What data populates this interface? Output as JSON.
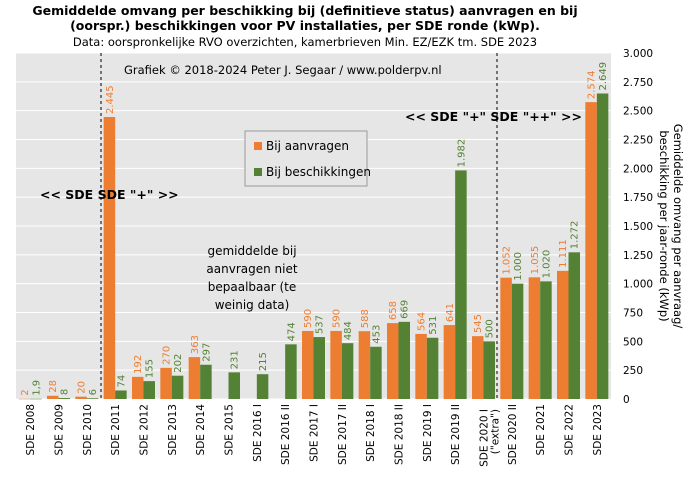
{
  "chart_data": {
    "type": "bar",
    "title_lines": [
      "Gemiddelde omvang per beschikking bij (definitieve status) aanvragen en bij",
      "(oorspr.) beschikkingen voor PV installaties, per SDE ronde (kWp)."
    ],
    "subtitle": "Data: oorspronkelijke RVO overzichten, kamerbrieven Min. EZ/EZK tm. SDE 2023",
    "credit": "Grafiek © 2018-2024 Peter J. Segaar / www.polderpv.nl",
    "ylabel_lines": [
      "Gemiddelde omvang per aanvraag/",
      "beschikking per jaar-ronde (kWp)"
    ],
    "ylim": [
      0,
      3000
    ],
    "yticks": [
      0,
      250,
      500,
      750,
      1000,
      1250,
      1500,
      1750,
      2000,
      2250,
      2500,
      2750,
      3000
    ],
    "ytick_labels": [
      "0",
      "250",
      "500",
      "750",
      "1.000",
      "1.250",
      "1.500",
      "1.750",
      "2.000",
      "2.250",
      "2.500",
      "2.750",
      "3.000"
    ],
    "grid": true,
    "legend_position": "center",
    "categories": [
      "SDE 2008",
      "SDE 2009",
      "SDE 2010",
      "SDE 2011",
      "SDE 2012",
      "SDE 2013",
      "SDE 2014",
      "SDE 2015",
      "SDE 2016 I",
      "SDE 2016 II",
      "SDE 2017 I",
      "SDE 2017 II",
      "SDE 2018 I",
      "SDE 2018 II",
      "SDE 2019 I",
      "SDE 2019 II",
      "SDE 2020 I (\"extra\")",
      "SDE 2020 II",
      "SDE 2021",
      "SDE 2022",
      "SDE 2023"
    ],
    "series": [
      {
        "name": "Bij aanvragen",
        "color": "#ED7D31",
        "values": [
          2,
          28,
          20,
          2445,
          192,
          270,
          363,
          null,
          null,
          null,
          590,
          590,
          588,
          658,
          564,
          641,
          545,
          1052,
          1055,
          1111,
          2574
        ],
        "labels": [
          "2",
          "28",
          "20",
          "2.445",
          "192",
          "270",
          "363",
          "",
          "",
          "",
          "590",
          "590",
          "588",
          "658",
          "564",
          "641",
          "545",
          "1.052",
          "1.055",
          "1.111",
          "2.574"
        ]
      },
      {
        "name": "Bij beschikkingen",
        "color": "#548235",
        "values": [
          1.9,
          8,
          6,
          74,
          155,
          202,
          297,
          231,
          215,
          474,
          537,
          484,
          453,
          669,
          531,
          1982,
          500,
          1000,
          1020,
          1272,
          2649
        ],
        "labels": [
          "1,9",
          "8",
          "6",
          "74",
          "155",
          "202",
          "297",
          "231",
          "215",
          "474",
          "537",
          "484",
          "453",
          "669",
          "531",
          "1.982",
          "500",
          "1.000",
          "1.020",
          "1.272",
          "2.649"
        ]
      }
    ],
    "annotations": {
      "sde_plus": "<< SDE SDE \"+\" >>",
      "sde_plusplus": "<< SDE \"+\" SDE \"++\" >>",
      "note_lines": [
        "gemiddelde bij",
        "aanvragen niet",
        "bepaalbaar (te",
        "weinig data)"
      ]
    }
  }
}
